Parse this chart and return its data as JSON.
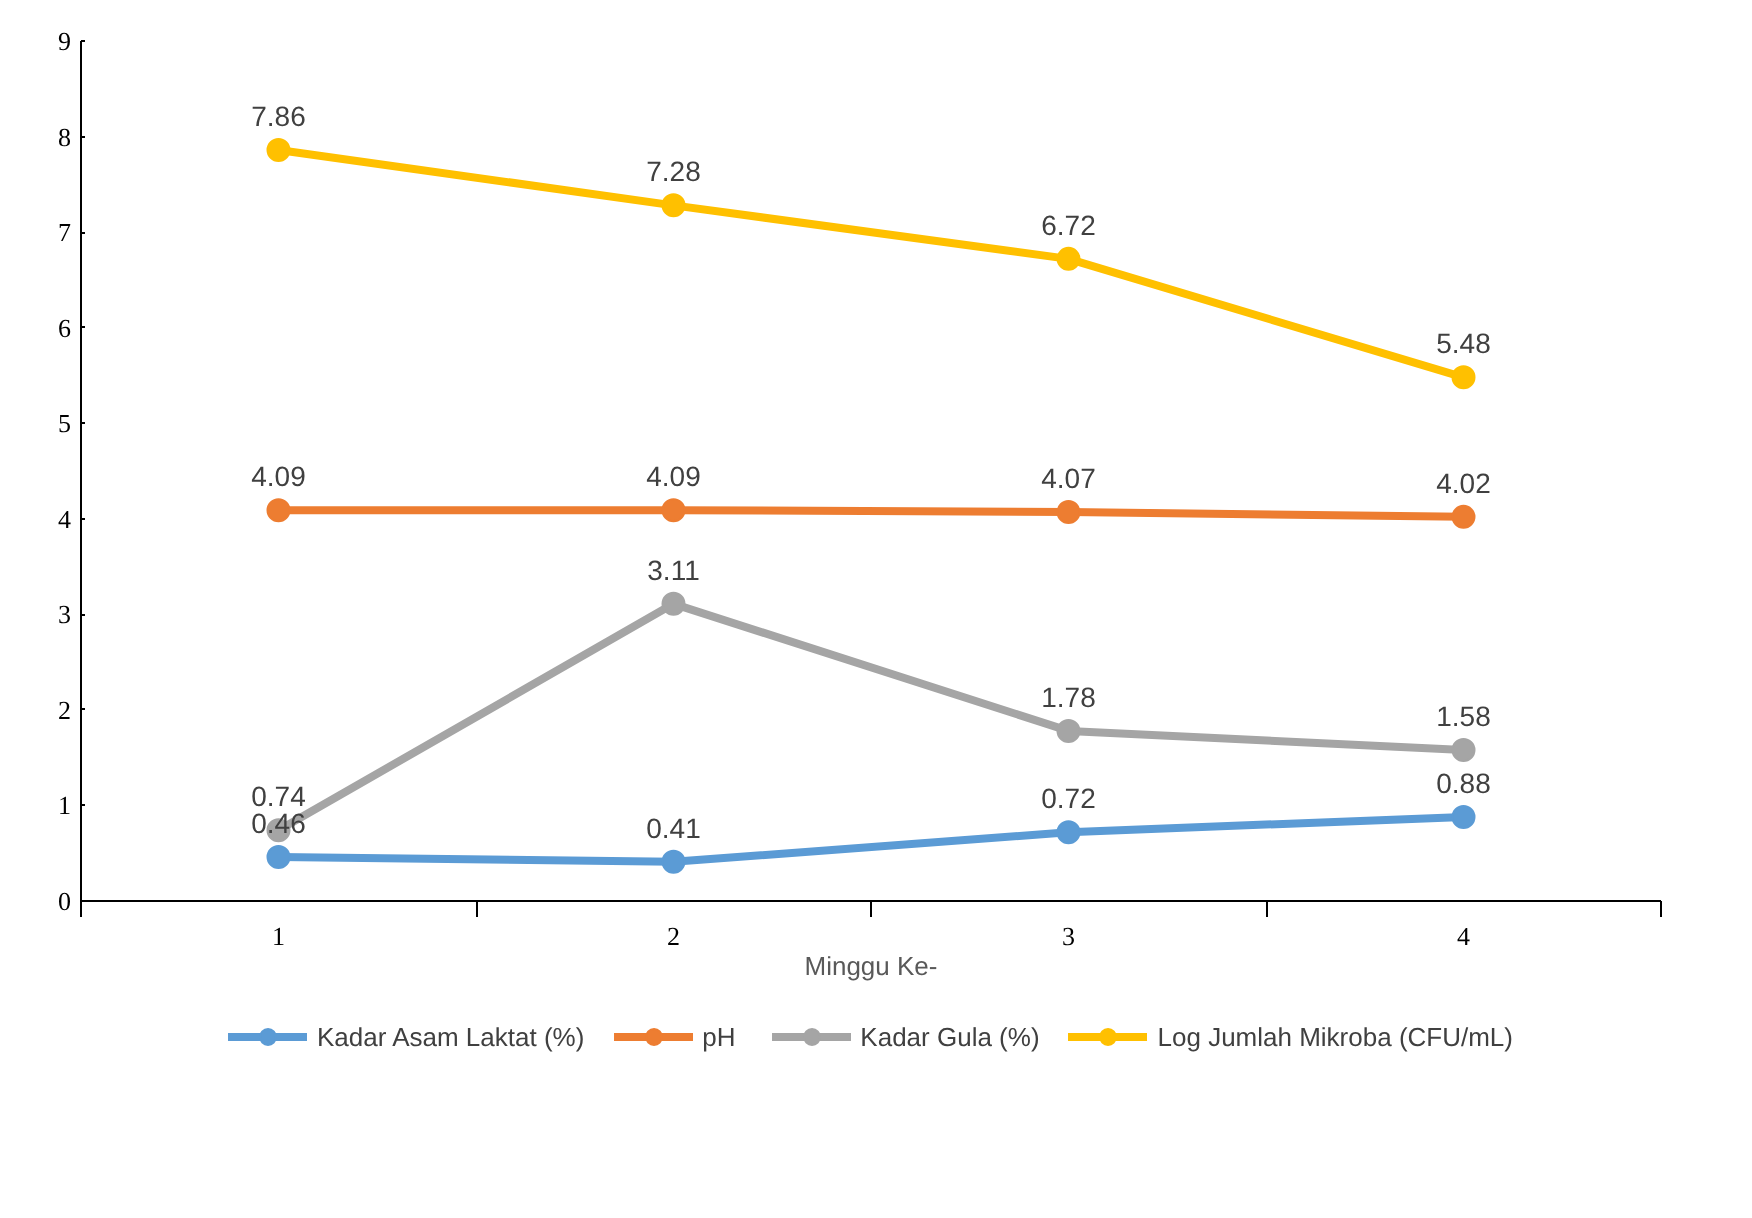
{
  "chart_data": {
    "type": "line",
    "xlabel": "Minggu Ke-",
    "categories": [
      "1",
      "2",
      "3",
      "4"
    ],
    "ylim": [
      0,
      9
    ],
    "yticks": [
      0,
      1,
      2,
      3,
      4,
      5,
      6,
      7,
      8,
      9
    ],
    "grid": false,
    "legend": "bottom",
    "marker": "circle",
    "line_style": "solid",
    "data_labels": true,
    "series": [
      {
        "name": "Kadar Asam Laktat (%)",
        "color": "#5b9bd5",
        "values": [
          0.46,
          0.41,
          0.72,
          0.88
        ]
      },
      {
        "name": "pH",
        "color": "#ed7d31",
        "values": [
          4.09,
          4.09,
          4.07,
          4.02
        ]
      },
      {
        "name": "Kadar Gula (%)",
        "color": "#a5a5a5",
        "values": [
          0.74,
          3.11,
          1.78,
          1.58
        ]
      },
      {
        "name": "Log Jumlah Mikroba (CFU/mL)",
        "color": "#ffc000",
        "values": [
          7.86,
          7.28,
          6.72,
          5.48
        ]
      }
    ]
  }
}
